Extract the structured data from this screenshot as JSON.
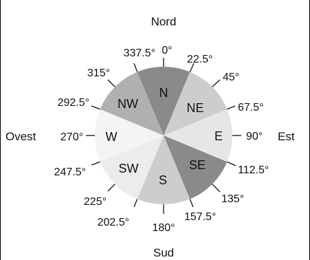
{
  "cardinals": {
    "north": "Nord",
    "south": "Sud",
    "west": "Ovest",
    "east": "Est"
  },
  "degrees": {
    "d0": "0°",
    "d22_5": "22.5°",
    "d45": "45°",
    "d67_5": "67.5°",
    "d90": "90°",
    "d112_5": "112.5°",
    "d135": "135°",
    "d157_5": "157.5°",
    "d180": "180°",
    "d202_5": "202.5°",
    "d225": "225°",
    "d247_5": "247.5°",
    "d270": "270°",
    "d292_5": "292.5°",
    "d315": "315°",
    "d337_5": "337.5°"
  },
  "sectors": {
    "N": "N",
    "NE": "NE",
    "E": "E",
    "SE": "SE",
    "S": "S",
    "SW": "SW",
    "W": "W",
    "NW": "NW"
  },
  "colors": {
    "N": "#8a8a8a",
    "NE": "#cdcdcd",
    "E": "#e6e6e6",
    "SE": "#8a8a8a",
    "S": "#cdcdcd",
    "SW": "#ececec",
    "W": "#f4f4f4",
    "NW": "#b0b0b0"
  }
}
